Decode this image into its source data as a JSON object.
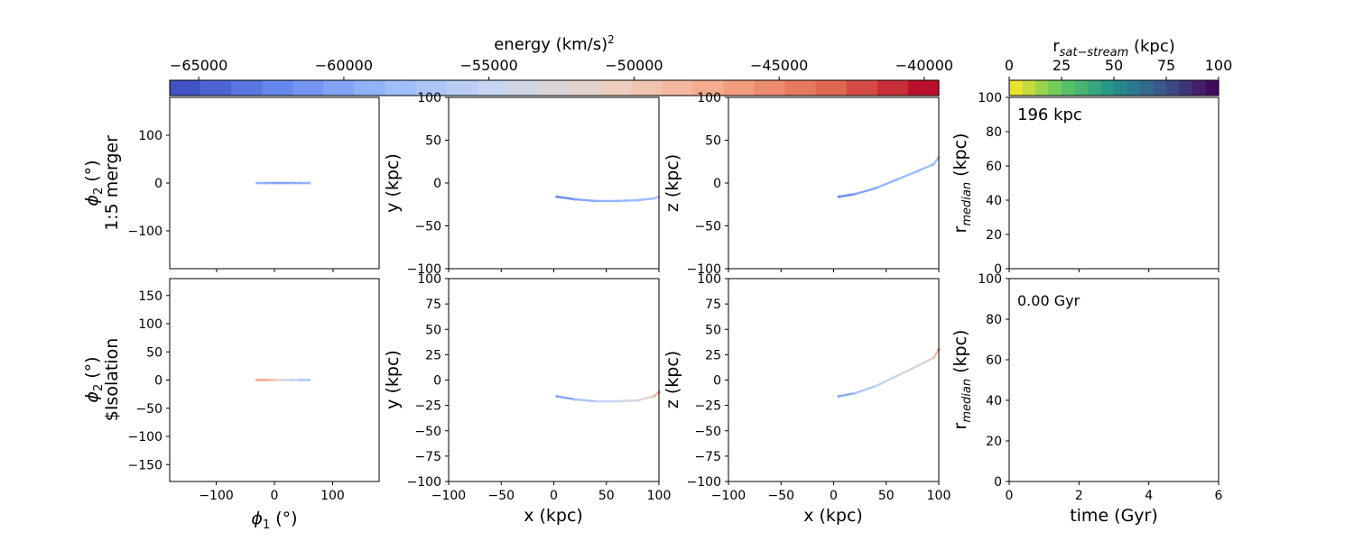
{
  "colors": {
    "axes": "#000000",
    "background": "#ffffff",
    "coolwarm": [
      "#3b4cc0",
      "#6788ee",
      "#9abbff",
      "#c9d7f0",
      "#edd1c2",
      "#f7a889",
      "#e26952",
      "#b40426"
    ],
    "viridis_r": [
      "#fde725",
      "#5ec962",
      "#21918c",
      "#3b528b",
      "#440154"
    ]
  },
  "colorbars": {
    "energy": {
      "label_main": "energy (km/s)",
      "label_sup": "2",
      "ticks": [
        "−65000",
        "−60000",
        "−55000",
        "−50000",
        "−45000",
        "−40000"
      ],
      "tick_values": [
        -65000,
        -60000,
        -55000,
        -50000,
        -45000,
        -40000
      ],
      "range": [
        -66000,
        -39500
      ],
      "levels": 25,
      "colormap": "coolwarm"
    },
    "rsat": {
      "label_main": "r",
      "label_sub": "sat−stream",
      "label_unit": " (kpc)",
      "ticks": [
        "0",
        "25",
        "50",
        "75",
        "100"
      ],
      "tick_values": [
        0,
        25,
        50,
        75,
        100
      ],
      "range": [
        0,
        100
      ],
      "levels": 16,
      "colormap": "viridis_r"
    }
  },
  "rows": [
    {
      "ylabel_line1": "ϕ",
      "ylabel_sub": "2",
      "ylabel_unit": " (°)",
      "ylabel_line2": "1:5 merger"
    },
    {
      "ylabel_line1": "ϕ",
      "ylabel_sub": "2",
      "ylabel_unit": " (°)",
      "ylabel_line2": "$Isolation"
    }
  ],
  "axes_labels": {
    "phi1": "ϕ",
    "phi1_sub": "1",
    "phi1_unit": " (°)",
    "x": "x (kpc)",
    "y": "y (kpc)",
    "z": "z (kpc)",
    "time": "time (Gyr)",
    "rmed_main": "r",
    "rmed_sub": "median",
    "rmed_unit": " (kpc)"
  },
  "ticks": {
    "phi2_top": [
      "100",
      "0",
      "−100"
    ],
    "phi2_top_values": [
      100,
      0,
      -100
    ],
    "phi2_bottom": [
      "150",
      "100",
      "50",
      "0",
      "−50",
      "−100",
      "−150"
    ],
    "phi2_bottom_values": [
      150,
      100,
      50,
      0,
      -50,
      -100,
      -150
    ],
    "phi1": [
      "−100",
      "0",
      "100"
    ],
    "phi1_values": [
      -100,
      0,
      100
    ],
    "xyz": [
      "100",
      "75",
      "50",
      "25",
      "0",
      "−25",
      "−50",
      "−75",
      "−100"
    ],
    "xyz_values": [
      100,
      75,
      50,
      25,
      0,
      -25,
      -50,
      -75,
      -100
    ],
    "xtop": [
      "100",
      "50",
      "0",
      "−50",
      "−100"
    ],
    "xtop_values": [
      100,
      50,
      0,
      -50,
      -100
    ],
    "x": [
      "−100",
      "−50",
      "0",
      "50",
      "100"
    ],
    "x_values": [
      -100,
      -50,
      0,
      50,
      100
    ],
    "rmed": [
      "100",
      "80",
      "60",
      "40",
      "20",
      "0"
    ],
    "rmed_values": [
      100,
      80,
      60,
      40,
      20,
      0
    ],
    "time": [
      "0",
      "2",
      "4",
      "6"
    ],
    "time_values": [
      0,
      2,
      4,
      6
    ]
  },
  "annotations": {
    "top_right": "196 kpc",
    "bottom_right": "0.00 Gyr"
  },
  "chart_data": [
    {
      "type": "scatter",
      "panel": "row1-sky",
      "xlim": [
        -180,
        180
      ],
      "ylim": [
        -180,
        180
      ],
      "x": [
        -30,
        -15,
        0,
        15,
        30,
        45,
        60
      ],
      "y": [
        0,
        0,
        0,
        0,
        0,
        0,
        0
      ],
      "energy": [
        -59000,
        -59500,
        -60000,
        -60000,
        -59500,
        -59000,
        -58500
      ]
    },
    {
      "type": "scatter",
      "panel": "row1-xy",
      "xlim": [
        -100,
        100
      ],
      "ylim": [
        -100,
        100
      ],
      "x": [
        3,
        20,
        40,
        60,
        80,
        95,
        100
      ],
      "y": [
        -16,
        -19,
        -21,
        -21,
        -20,
        -18,
        -16
      ],
      "energy": [
        -62000,
        -60000,
        -59000,
        -58500,
        -58000,
        -57500,
        -57000
      ]
    },
    {
      "type": "scatter",
      "panel": "row1-xz",
      "xlim": [
        -100,
        100
      ],
      "ylim": [
        -100,
        100
      ],
      "x": [
        5,
        20,
        40,
        60,
        80,
        95,
        100
      ],
      "y": [
        -16,
        -13,
        -6,
        4,
        14,
        22,
        30
      ],
      "energy": [
        -62000,
        -60000,
        -59000,
        -58500,
        -58000,
        -57500,
        -57000
      ]
    },
    {
      "type": "scatter",
      "panel": "row2-sky",
      "xlim": [
        -180,
        180
      ],
      "ylim": [
        -180,
        180
      ],
      "x": [
        -30,
        -15,
        0,
        15,
        30,
        45,
        60
      ],
      "y": [
        0,
        0,
        0,
        0,
        0,
        0,
        0
      ],
      "energy": [
        -47000,
        -48000,
        -51000,
        -54000,
        -55500,
        -56500,
        -57000
      ]
    },
    {
      "type": "scatter",
      "panel": "row2-xy",
      "xlim": [
        -100,
        100
      ],
      "ylim": [
        -100,
        100
      ],
      "x": [
        3,
        20,
        40,
        60,
        80,
        95,
        100
      ],
      "y": [
        -16,
        -19,
        -21,
        -21,
        -20,
        -16,
        -12
      ],
      "energy": [
        -60000,
        -57000,
        -55000,
        -53500,
        -52000,
        -49000,
        -46000
      ]
    },
    {
      "type": "scatter",
      "panel": "row2-xz",
      "xlim": [
        -100,
        100
      ],
      "ylim": [
        -100,
        100
      ],
      "x": [
        5,
        20,
        40,
        60,
        80,
        95,
        100
      ],
      "y": [
        -16,
        -13,
        -6,
        4,
        14,
        22,
        30
      ],
      "energy": [
        -60000,
        -57000,
        -55000,
        -53500,
        -52000,
        -49000,
        -46000
      ]
    },
    {
      "type": "line",
      "panel": "row1-rmedian",
      "xlim": [
        0,
        6
      ],
      "ylim": [
        0,
        100
      ],
      "x": [],
      "y": []
    },
    {
      "type": "line",
      "panel": "row2-rmedian",
      "xlim": [
        0,
        6
      ],
      "ylim": [
        0,
        100
      ],
      "x": [],
      "y": []
    }
  ]
}
